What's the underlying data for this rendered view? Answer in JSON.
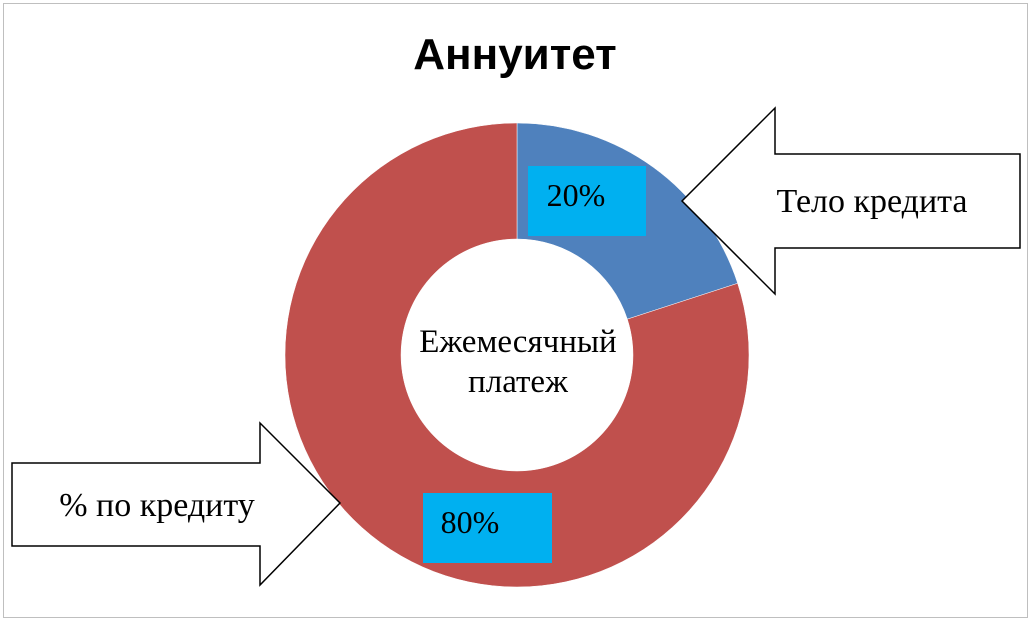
{
  "chart_data": {
    "type": "pie",
    "variant": "doughnut",
    "title": "Аннуитет",
    "center_label": [
      "Ежемесячный",
      "платеж"
    ],
    "slices": [
      {
        "label": "Тело кредита",
        "value": 20,
        "data_label": "20%",
        "color": "#4f81bd"
      },
      {
        "label": "% по кредиту",
        "value": 80,
        "data_label": "80%",
        "color": "#c0504d"
      }
    ],
    "data_label_background": "#00b0f0",
    "start_angle_deg": 0,
    "direction": "clockwise"
  }
}
